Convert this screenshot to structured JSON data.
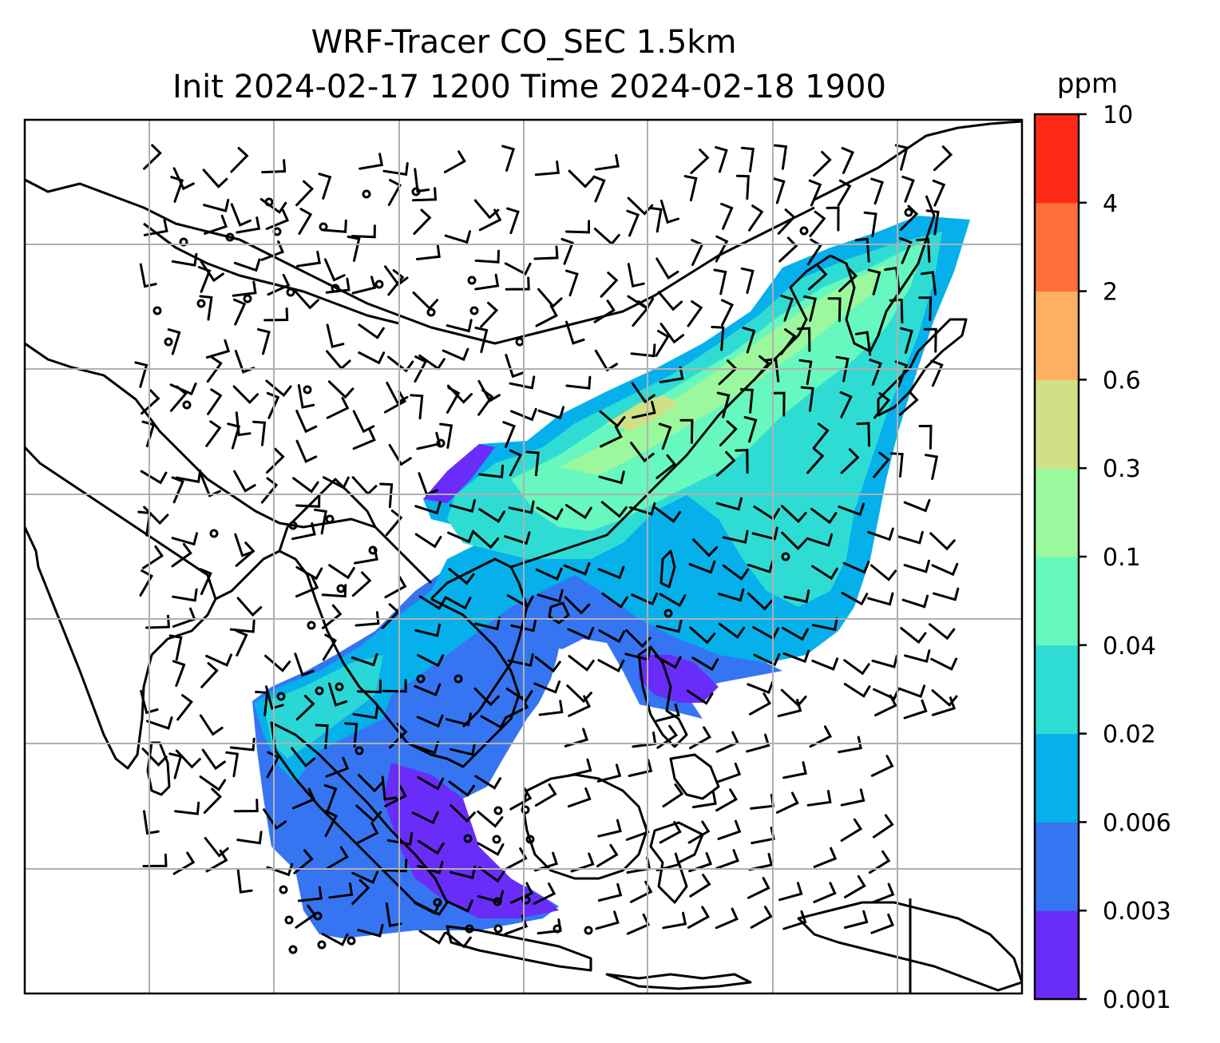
{
  "figure": {
    "title_line1": "WRF-Tracer CO_SEC 1.5km",
    "title_line2": "Init 2024-02-17 1200 Time 2024-02-18 1900"
  },
  "colorbar": {
    "unit": "ppm",
    "levels": [
      "0.001",
      "0.003",
      "0.006",
      "0.02",
      "0.04",
      "0.1",
      "0.3",
      "0.6",
      "2",
      "4",
      "10"
    ],
    "colors": [
      "#6a2cf8",
      "#3575f2",
      "#06b0ea",
      "#2fdcd4",
      "#66f8be",
      "#9cf89c",
      "#d0e086",
      "#fdb061",
      "#fe6f3a",
      "#fe2a17"
    ]
  },
  "map": {
    "background": "#ffffff",
    "coastline_color": "#000000",
    "grid_color": "#b0b0b0",
    "tracer_plume": "CO_SEC concentration field over South & East Asia",
    "wind_barbs": "black wind barbs with calm-wind circles"
  }
}
